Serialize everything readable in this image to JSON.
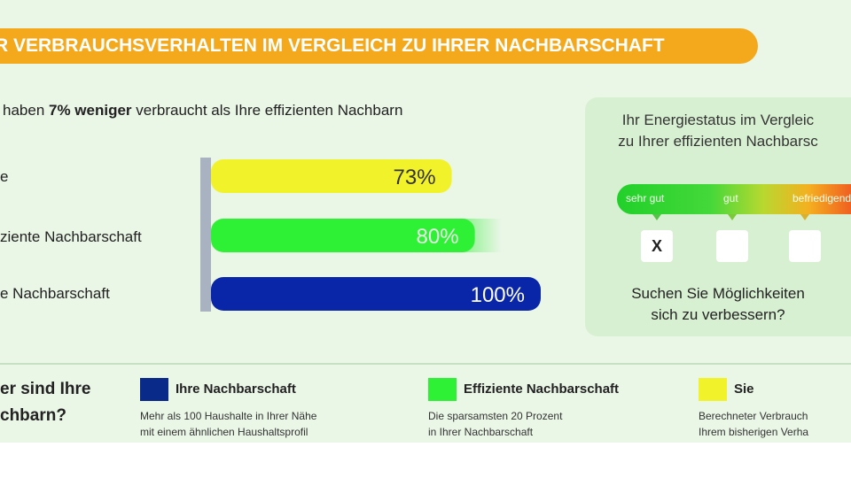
{
  "banner": {
    "title": "R VERBRAUCHSVERHALTEN IM VERGLEICH ZU IHRER NACHBARSCHAFT"
  },
  "summary": {
    "prefix": "haben ",
    "highlight": "7% weniger",
    "suffix": " verbraucht als Ihre effizienten Nachbarn"
  },
  "chart_data": {
    "type": "bar",
    "orientation": "horizontal",
    "categories": [
      "e",
      "ziente Nachbarschaft",
      "e Nachbarschaft"
    ],
    "values": [
      73,
      80,
      100
    ],
    "data_labels": [
      "73%",
      "80%",
      "100%"
    ],
    "colors": [
      "#f2f22a",
      "#2ef035",
      "#0a26a8"
    ],
    "xlim": [
      0,
      100
    ]
  },
  "status": {
    "title_line1": "Ihr Energiestatus im Vergleic",
    "title_line2": "zu Ihrer effizienten Nachbarsc",
    "scale_labels": [
      "sehr gut",
      "gut",
      "befriedigend"
    ],
    "checked_mark": "X",
    "question_line1": "Suchen Sie Möglichkeiten",
    "question_line2": "sich zu verbessern?"
  },
  "legend": {
    "question_line1": "er sind Ihre",
    "question_line2": "chbarn?",
    "items": [
      {
        "title": "Ihre Nachbarschaft",
        "color": "#0a2a8a",
        "desc1": "Mehr als 100 Haushalte in Ihrer Nähe",
        "desc2": "mit einem ähnlichen Haushaltsprofil"
      },
      {
        "title": "Effiziente Nachbarschaft",
        "color": "#2ef035",
        "desc1": "Die sparsamsten 20 Prozent",
        "desc2": "in Ihrer Nachbarschaft"
      },
      {
        "title": "Sie",
        "color": "#f2f22a",
        "desc1": "Berechneter Verbrauch",
        "desc2": "Ihrem bisherigen Verha"
      }
    ]
  }
}
